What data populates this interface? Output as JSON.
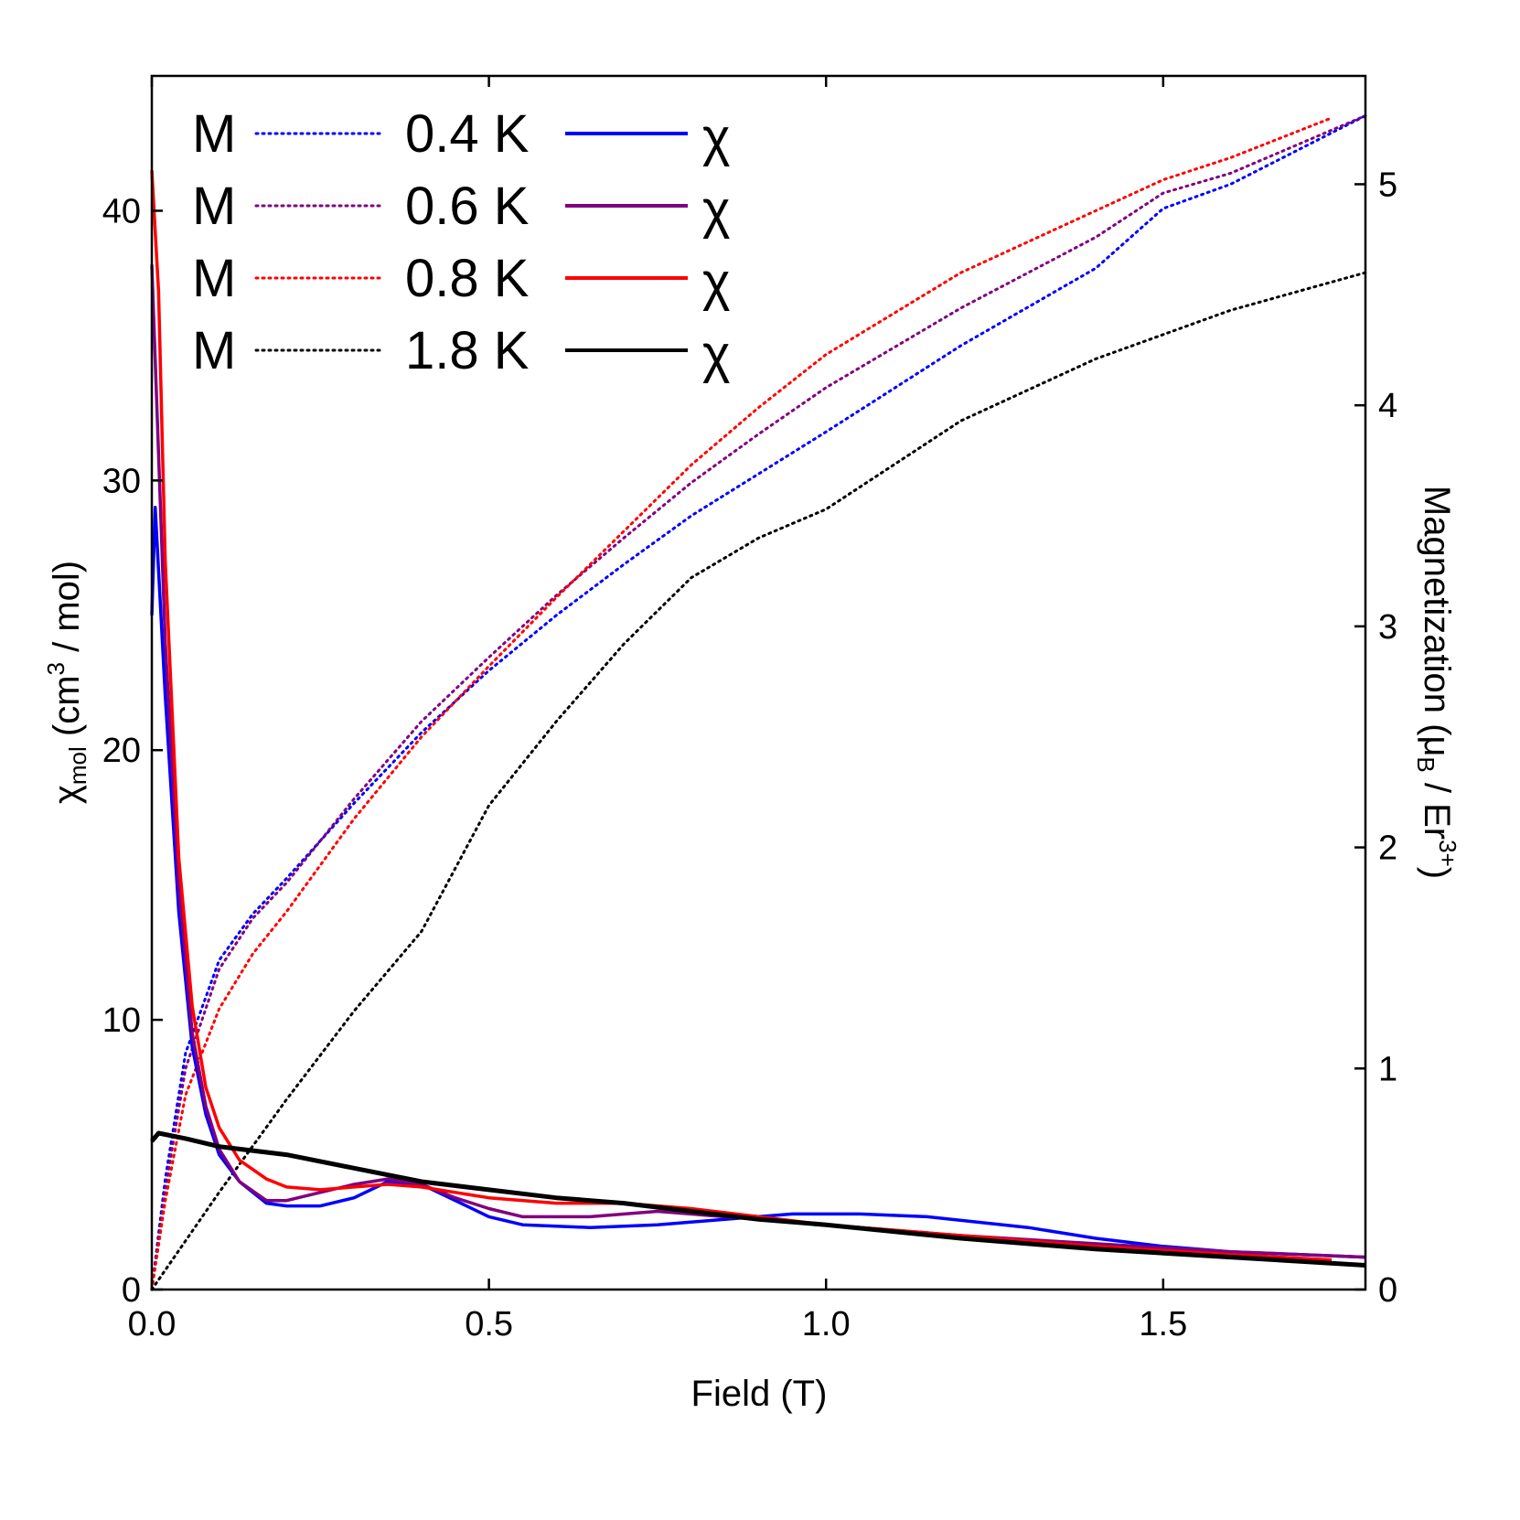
{
  "chart_data": {
    "type": "line",
    "xlabel": "Field (T)",
    "ylabel_left": {
      "main": "χ",
      "sub": "mol",
      "rest1": " (cm",
      "sup": "3",
      "rest2": " / mol)"
    },
    "ylabel_right": {
      "main": "Magnetization (μ",
      "sub": "B",
      "rest1": " / Er",
      "sup": "3+",
      "rest2": ")"
    },
    "xlim": [
      0,
      1.8
    ],
    "ylim_left": [
      0,
      45
    ],
    "ylim_right": [
      0,
      5.49
    ],
    "xticks": [
      "0.0",
      "0.5",
      "1.0",
      "1.5"
    ],
    "xtick_values": [
      0,
      0.5,
      1.0,
      1.5
    ],
    "yticks_left": [
      "0",
      "10",
      "20",
      "30",
      "40"
    ],
    "yticks_left_values": [
      0,
      10,
      20,
      30,
      40
    ],
    "yticks_right": [
      "0",
      "1",
      "2",
      "3",
      "4",
      "5"
    ],
    "yticks_right_values": [
      0,
      1,
      2,
      3,
      4,
      5
    ],
    "grid": false,
    "legend_placement": "top-left",
    "legend": [
      {
        "m": "M",
        "temp": "0.4 K",
        "chi": "χ",
        "color": "#0000ff"
      },
      {
        "m": "M",
        "temp": "0.6 K",
        "chi": "χ",
        "color": "#800080"
      },
      {
        "m": "M",
        "temp": "0.8 K",
        "chi": "χ",
        "color": "#ff0000"
      },
      {
        "m": "M",
        "temp": "1.8 K",
        "chi": "χ",
        "color": "#000000"
      }
    ],
    "series": [
      {
        "name": "M 0.4 K",
        "axis": "right",
        "style": "dotted",
        "color": "#0000ff",
        "x": [
          0,
          0.02,
          0.05,
          0.1,
          0.15,
          0.2,
          0.3,
          0.4,
          0.5,
          0.6,
          0.7,
          0.8,
          0.9,
          1.0,
          1.2,
          1.4,
          1.5,
          1.6,
          1.8
        ],
        "y": [
          0,
          0.5,
          1.07,
          1.49,
          1.7,
          1.86,
          2.2,
          2.52,
          2.8,
          3.05,
          3.28,
          3.5,
          3.69,
          3.88,
          4.27,
          4.62,
          4.89,
          5.0,
          5.31
        ]
      },
      {
        "name": "M 0.6 K",
        "axis": "right",
        "style": "dotted",
        "color": "#800080",
        "x": [
          0,
          0.02,
          0.05,
          0.1,
          0.15,
          0.2,
          0.3,
          0.4,
          0.5,
          0.6,
          0.7,
          0.8,
          0.9,
          1.0,
          1.2,
          1.4,
          1.5,
          1.6,
          1.8
        ],
        "y": [
          0,
          0.45,
          1.0,
          1.45,
          1.68,
          1.84,
          2.22,
          2.57,
          2.86,
          3.14,
          3.4,
          3.65,
          3.87,
          4.08,
          4.44,
          4.76,
          4.96,
          5.05,
          5.31
        ]
      },
      {
        "name": "M 0.8 K",
        "axis": "right",
        "style": "dotted",
        "color": "#ff0000",
        "x": [
          0,
          0.02,
          0.05,
          0.1,
          0.15,
          0.2,
          0.3,
          0.4,
          0.5,
          0.6,
          0.7,
          0.8,
          0.9,
          1.0,
          1.2,
          1.4,
          1.5,
          1.6,
          1.75
        ],
        "y": [
          0,
          0.4,
          0.88,
          1.27,
          1.52,
          1.71,
          2.13,
          2.5,
          2.82,
          3.13,
          3.43,
          3.73,
          3.99,
          4.23,
          4.6,
          4.88,
          5.02,
          5.12,
          5.3
        ]
      },
      {
        "name": "M 1.8 K",
        "axis": "right",
        "style": "dotted",
        "color": "#000000",
        "x": [
          0,
          0.1,
          0.2,
          0.3,
          0.4,
          0.5,
          0.6,
          0.7,
          0.8,
          0.9,
          1.0,
          1.2,
          1.4,
          1.6,
          1.8
        ],
        "y": [
          0,
          0.44,
          0.86,
          1.26,
          1.62,
          2.19,
          2.57,
          2.92,
          3.22,
          3.4,
          3.53,
          3.93,
          4.21,
          4.43,
          4.6
        ]
      },
      {
        "name": "χ 0.4 K",
        "axis": "left",
        "style": "solid",
        "color": "#0000ff",
        "x": [
          0,
          0.005,
          0.02,
          0.04,
          0.06,
          0.08,
          0.1,
          0.13,
          0.17,
          0.2,
          0.25,
          0.3,
          0.35,
          0.4,
          0.45,
          0.5,
          0.55,
          0.65,
          0.75,
          0.85,
          0.95,
          1.05,
          1.15,
          1.3,
          1.4,
          1.5,
          1.6,
          1.8
        ],
        "y": [
          25,
          29,
          22,
          14,
          9,
          6.5,
          5,
          4,
          3.2,
          3.1,
          3.1,
          3.4,
          4.0,
          3.9,
          3.3,
          2.7,
          2.4,
          2.3,
          2.4,
          2.6,
          2.8,
          2.8,
          2.7,
          2.3,
          1.9,
          1.6,
          1.4,
          1.2
        ]
      },
      {
        "name": "χ 0.6 K",
        "axis": "left",
        "style": "solid",
        "color": "#800080",
        "x": [
          0,
          0.02,
          0.04,
          0.06,
          0.08,
          0.1,
          0.13,
          0.17,
          0.2,
          0.25,
          0.3,
          0.35,
          0.4,
          0.45,
          0.5,
          0.55,
          0.65,
          0.75,
          0.85,
          1.0,
          1.2,
          1.4,
          1.6,
          1.8
        ],
        "y": [
          38,
          24,
          15,
          9.5,
          6.8,
          5.2,
          4,
          3.3,
          3.3,
          3.6,
          3.9,
          4.1,
          3.9,
          3.4,
          3.0,
          2.7,
          2.7,
          2.9,
          2.7,
          2.4,
          2.0,
          1.7,
          1.4,
          1.2
        ]
      },
      {
        "name": "χ 0.8 K",
        "axis": "left",
        "style": "solid",
        "color": "#ff0000",
        "x": [
          0,
          0.01,
          0.02,
          0.04,
          0.06,
          0.08,
          0.1,
          0.13,
          0.17,
          0.2,
          0.25,
          0.3,
          0.35,
          0.4,
          0.45,
          0.5,
          0.6,
          0.7,
          0.8,
          0.9,
          1.0,
          1.2,
          1.4,
          1.6,
          1.75
        ],
        "y": [
          41.5,
          37,
          27,
          16,
          10.5,
          7.5,
          6,
          4.8,
          4.1,
          3.8,
          3.7,
          3.8,
          3.9,
          3.8,
          3.6,
          3.4,
          3.2,
          3.2,
          3.0,
          2.7,
          2.4,
          2.0,
          1.6,
          1.3,
          1.1
        ]
      },
      {
        "name": "χ 1.8 K",
        "axis": "left",
        "style": "solid",
        "color": "#000000",
        "x": [
          0,
          0.01,
          0.05,
          0.1,
          0.2,
          0.3,
          0.4,
          0.5,
          0.6,
          0.7,
          0.8,
          0.9,
          1.0,
          1.2,
          1.4,
          1.6,
          1.8
        ],
        "y": [
          5.5,
          5.8,
          5.6,
          5.3,
          5.0,
          4.5,
          4.0,
          3.7,
          3.4,
          3.2,
          2.9,
          2.6,
          2.4,
          1.9,
          1.5,
          1.2,
          0.9
        ]
      }
    ]
  }
}
